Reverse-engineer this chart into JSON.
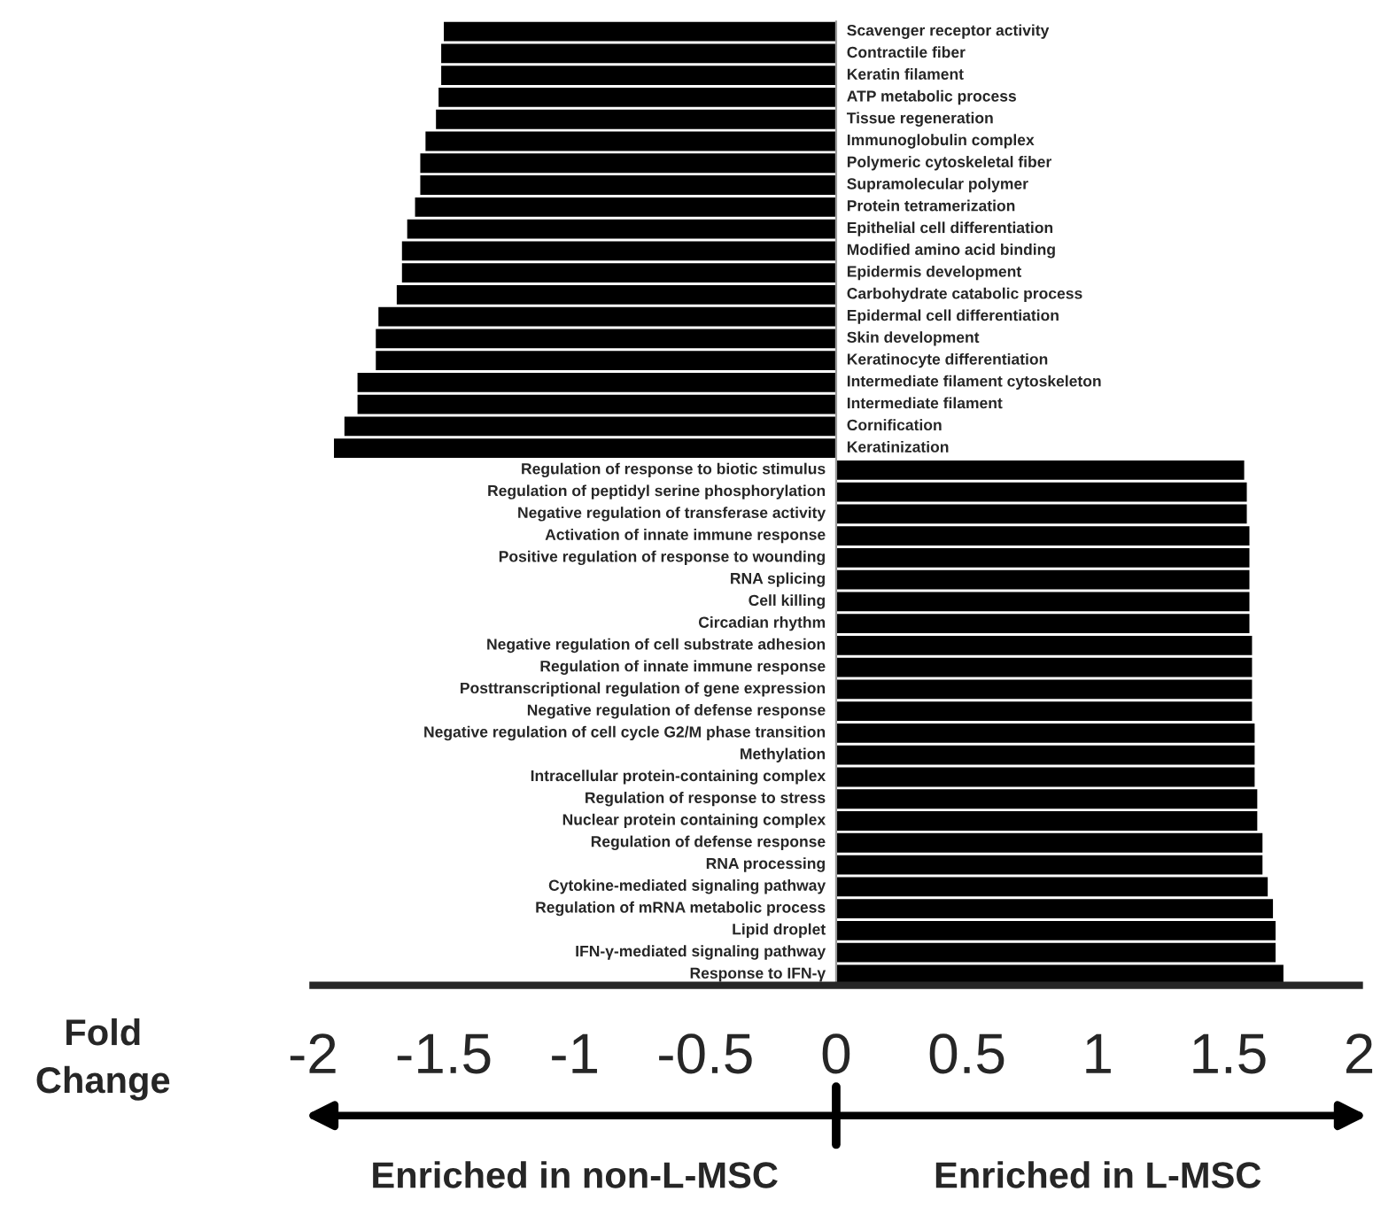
{
  "chart_data": {
    "type": "bar",
    "orientation": "horizontal",
    "xlabel": "Fold Change",
    "categories": [
      "Scavenger receptor activity",
      "Contractile fiber",
      "Keratin filament",
      "ATP metabolic process",
      "Tissue regeneration",
      "Immunoglobulin complex",
      "Polymeric cytoskeletal fiber",
      "Supramolecular polymer",
      "Protein tetramerization",
      "Epithelial cell differentiation",
      "Modified amino acid binding",
      "Epidermis development",
      "Carbohydrate catabolic process",
      "Epidermal cell differentiation",
      "Skin development",
      "Keratinocyte differentiation",
      "Intermediate filament cytoskeleton",
      "Intermediate filament",
      "Cornification",
      "Keratinization",
      "Regulation of response to biotic stimulus",
      "Regulation of peptidyl serine phosphorylation",
      "Negative regulation of transferase activity",
      "Activation of innate immune response",
      "Positive regulation of response to wounding",
      "RNA splicing",
      "Cell killing",
      "Circadian rhythm",
      "Negative regulation of cell substrate adhesion",
      "Regulation of innate immune response",
      "Posttranscriptional regulation of gene expression",
      "Negative regulation of defense response",
      "Negative regulation of cell cycle G2/M phase transition",
      "Methylation",
      "Intracellular protein-containing complex",
      "Regulation of response to stress",
      "Nuclear protein containing complex",
      "Regulation of defense response",
      "RNA processing",
      "Cytokine-mediated signaling pathway",
      "Regulation of mRNA metabolic process",
      "Lipid droplet",
      "IFN-γ-mediated signaling pathway",
      "Response to IFN-γ"
    ],
    "series": [
      {
        "color": "#000000",
        "values": [
          -1.5,
          -1.51,
          -1.51,
          -1.52,
          -1.53,
          -1.57,
          -1.59,
          -1.59,
          -1.61,
          -1.64,
          -1.66,
          -1.66,
          -1.68,
          -1.75,
          -1.76,
          -1.76,
          -1.83,
          -1.83,
          -1.88,
          -1.92,
          1.56,
          1.57,
          1.57,
          1.58,
          1.58,
          1.58,
          1.58,
          1.58,
          1.59,
          1.59,
          1.59,
          1.59,
          1.6,
          1.6,
          1.6,
          1.61,
          1.61,
          1.63,
          1.63,
          1.65,
          1.67,
          1.68,
          1.68,
          1.71
        ]
      }
    ],
    "xlim": [
      -2,
      2
    ],
    "xticks": [
      -2,
      -1.5,
      -1,
      -0.5,
      0,
      0.5,
      1,
      1.5,
      2
    ],
    "grid": false,
    "legend": false,
    "annotations": [
      "Enriched in non-L-MSC",
      "Enriched in L-MSC"
    ]
  }
}
